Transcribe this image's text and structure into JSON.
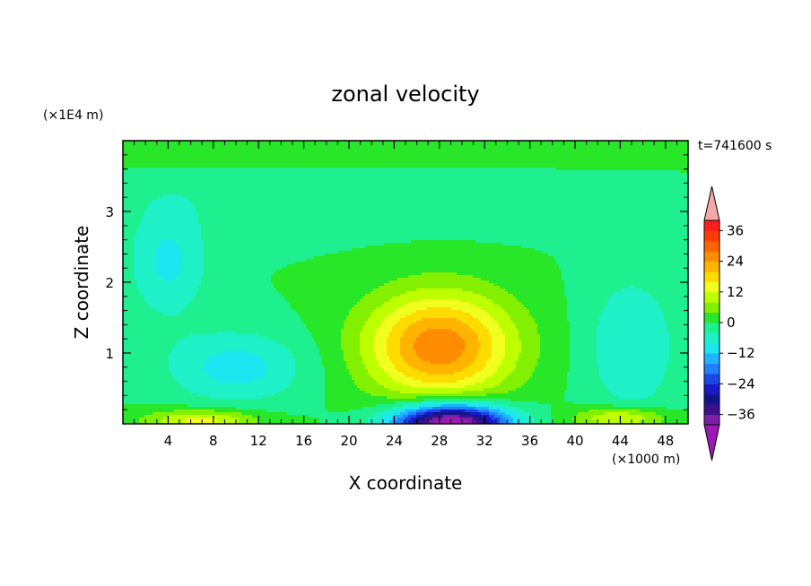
{
  "chart_data": {
    "type": "heatmap",
    "title": "zonal velocity",
    "time_label": "t=741600 s",
    "xlabel": "X coordinate",
    "ylabel": "Z coordinate",
    "x_unit": "(×1000 m)",
    "y_unit": "(×1E4 m)",
    "xlim": [
      0,
      50
    ],
    "ylim": [
      0,
      4
    ],
    "x_ticks": [
      "4",
      "8",
      "12",
      "16",
      "20",
      "24",
      "28",
      "32",
      "36",
      "40",
      "44",
      "48"
    ],
    "x_tick_values": [
      4,
      8,
      12,
      16,
      20,
      24,
      28,
      32,
      36,
      40,
      44,
      48
    ],
    "y_ticks": [
      "1",
      "2",
      "3"
    ],
    "y_tick_values": [
      1,
      2,
      3
    ],
    "colorbar": {
      "levels": [
        -40,
        -36,
        -32,
        -28,
        -24,
        -20,
        -16,
        -12,
        -8,
        -4,
        0,
        4,
        8,
        12,
        16,
        20,
        24,
        28,
        32,
        36,
        40
      ],
      "colors": [
        "#7a1fa6",
        "#3c0f8c",
        "#14148c",
        "#1919c8",
        "#1c46e6",
        "#1e82ff",
        "#1eb4ff",
        "#1ee6f0",
        "#1ef0c8",
        "#1ef090",
        "#28e628",
        "#82f000",
        "#beff00",
        "#f0ff1e",
        "#ffdc00",
        "#ffb400",
        "#ff8c00",
        "#ff6400",
        "#ff3c00",
        "#ff1e1e"
      ],
      "under_color": "#9b1ab4",
      "over_color": "#f4a8a8",
      "tick_labels": [
        "36",
        "24",
        "12",
        "0",
        "−12",
        "−24",
        "−36"
      ],
      "tick_values": [
        36,
        24,
        12,
        0,
        -12,
        -24,
        -36
      ]
    },
    "features": [
      {
        "x": 28,
        "z": 1.1,
        "sx": 6.5,
        "sz": 0.75,
        "amp": 27
      },
      {
        "x": 29,
        "z": 0.0,
        "sx": 5.0,
        "sz": 0.28,
        "amp": -48
      },
      {
        "x": 10,
        "z": 0.8,
        "sx": 6.0,
        "sz": 0.5,
        "amp": -10
      },
      {
        "x": 4,
        "z": 2.3,
        "sx": 3.5,
        "sz": 0.8,
        "amp": -9
      },
      {
        "x": 45,
        "z": 1.1,
        "sx": 4.0,
        "sz": 1.0,
        "amp": -8
      },
      {
        "x": 7,
        "z": 0.05,
        "sx": 5.0,
        "sz": 0.15,
        "amp": 14
      },
      {
        "x": 44,
        "z": 0.08,
        "sx": 4.0,
        "sz": 0.15,
        "amp": 14
      },
      {
        "x": 24,
        "z": 3.3,
        "sx": 22.0,
        "sz": 0.5,
        "amp": -4
      },
      {
        "x": 25,
        "z": 3.8,
        "sx": 30.0,
        "sz": 0.22,
        "amp": 5
      }
    ]
  }
}
